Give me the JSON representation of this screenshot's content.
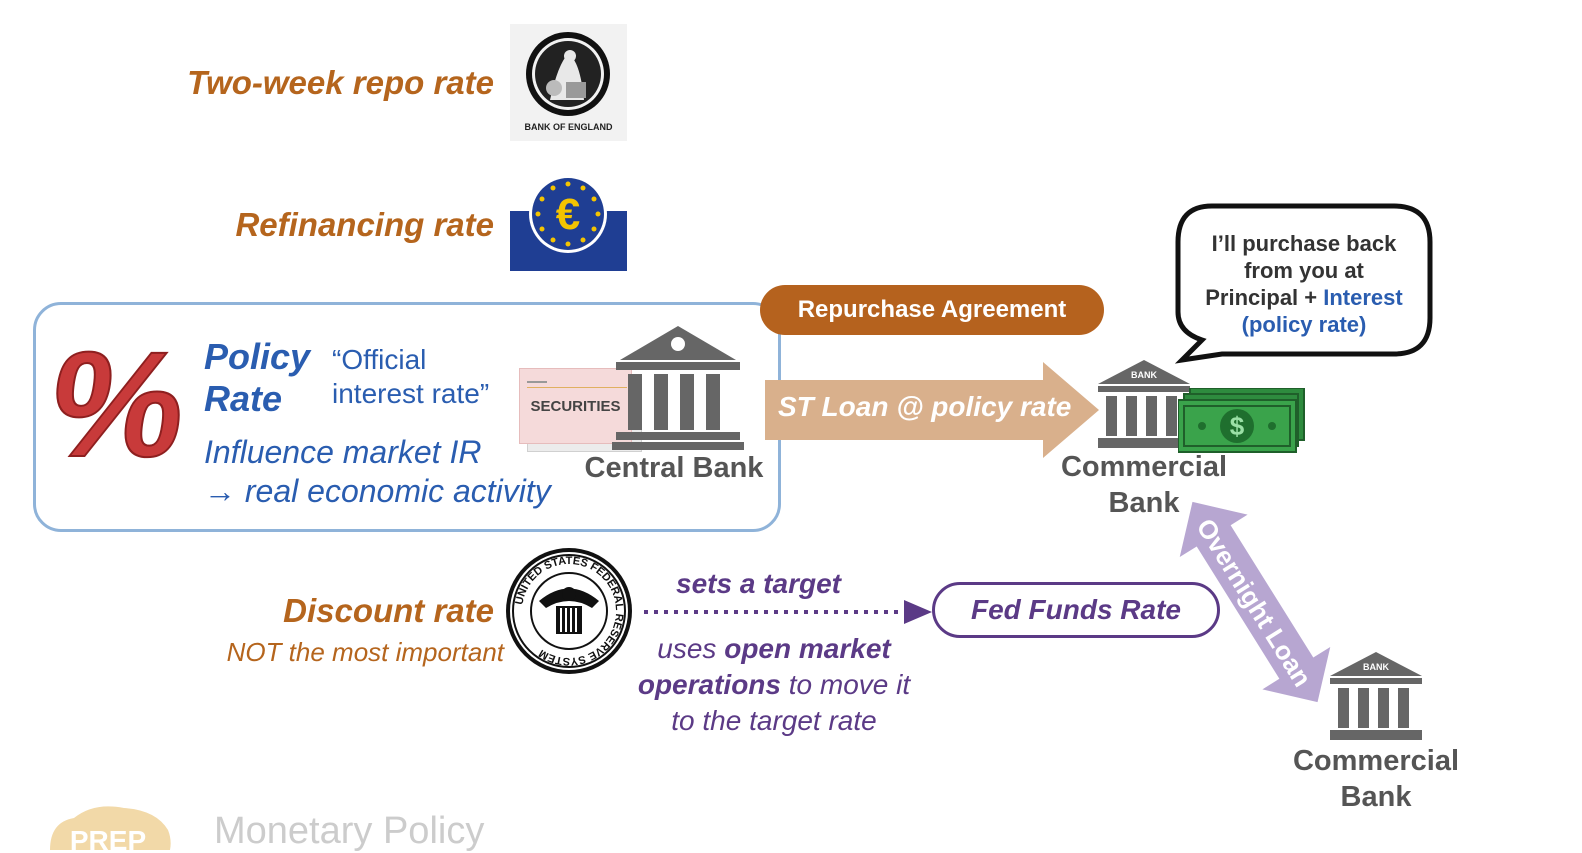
{
  "rates": {
    "two_week_repo": "Two-week repo rate",
    "refinancing": "Refinancing rate",
    "discount": "Discount rate",
    "discount_note": "NOT the most important"
  },
  "logos": {
    "boe": {
      "icon": "bank-of-england-logo",
      "caption": "BANK OF ENGLAND"
    },
    "ecb": {
      "icon": "euro-symbol-logo"
    },
    "fed": {
      "icon": "federal-reserve-seal",
      "caption": "UNITED STATES FEDERAL RESERVE SYSTEM"
    }
  },
  "policy_box": {
    "title_line1": "Policy",
    "title_line2": "Rate",
    "official_line1": "“Official",
    "official_line2": "interest rate”",
    "influence_line1": "Influence market IR",
    "influence_line2": "→ real economic activity",
    "percent_symbol": "%"
  },
  "central_bank": {
    "label": "Central Bank",
    "securities": "SECURITIES"
  },
  "repurchase_agreement": "Repurchase Agreement",
  "st_loan": "ST Loan @ policy rate",
  "commercial_bank_1": {
    "line1": "Commercial",
    "line2": "Bank",
    "sign": "BANK"
  },
  "commercial_bank_2": {
    "line1": "Commercial",
    "line2": "Bank",
    "sign": "BANK"
  },
  "speech_bubble": {
    "line1": "I’ll purchase back",
    "line2": "from you at",
    "line3_prefix": "Principal + ",
    "line3_blue": "Interest",
    "line4": "(policy rate)"
  },
  "fed_target": {
    "sets_target": "sets a target",
    "fed_funds_rate": "Fed Funds Rate",
    "uses_prefix": "uses ",
    "open_market": "open market",
    "operations": "operations",
    "move_it": " to move it",
    "target_rate": "to the target rate"
  },
  "overnight_loan": "Overnight Loan",
  "footer": {
    "logo_text": "PREP",
    "title": "Monetary Policy"
  },
  "colors": {
    "orange": "#b5651d",
    "blue": "#2a5db0",
    "purple": "#5b3a86",
    "tan_arrow": "#d9b08c",
    "lavender_arrow": "#b7a6d1",
    "bank_gray": "#555555",
    "money_green": "#2e8b3e"
  }
}
